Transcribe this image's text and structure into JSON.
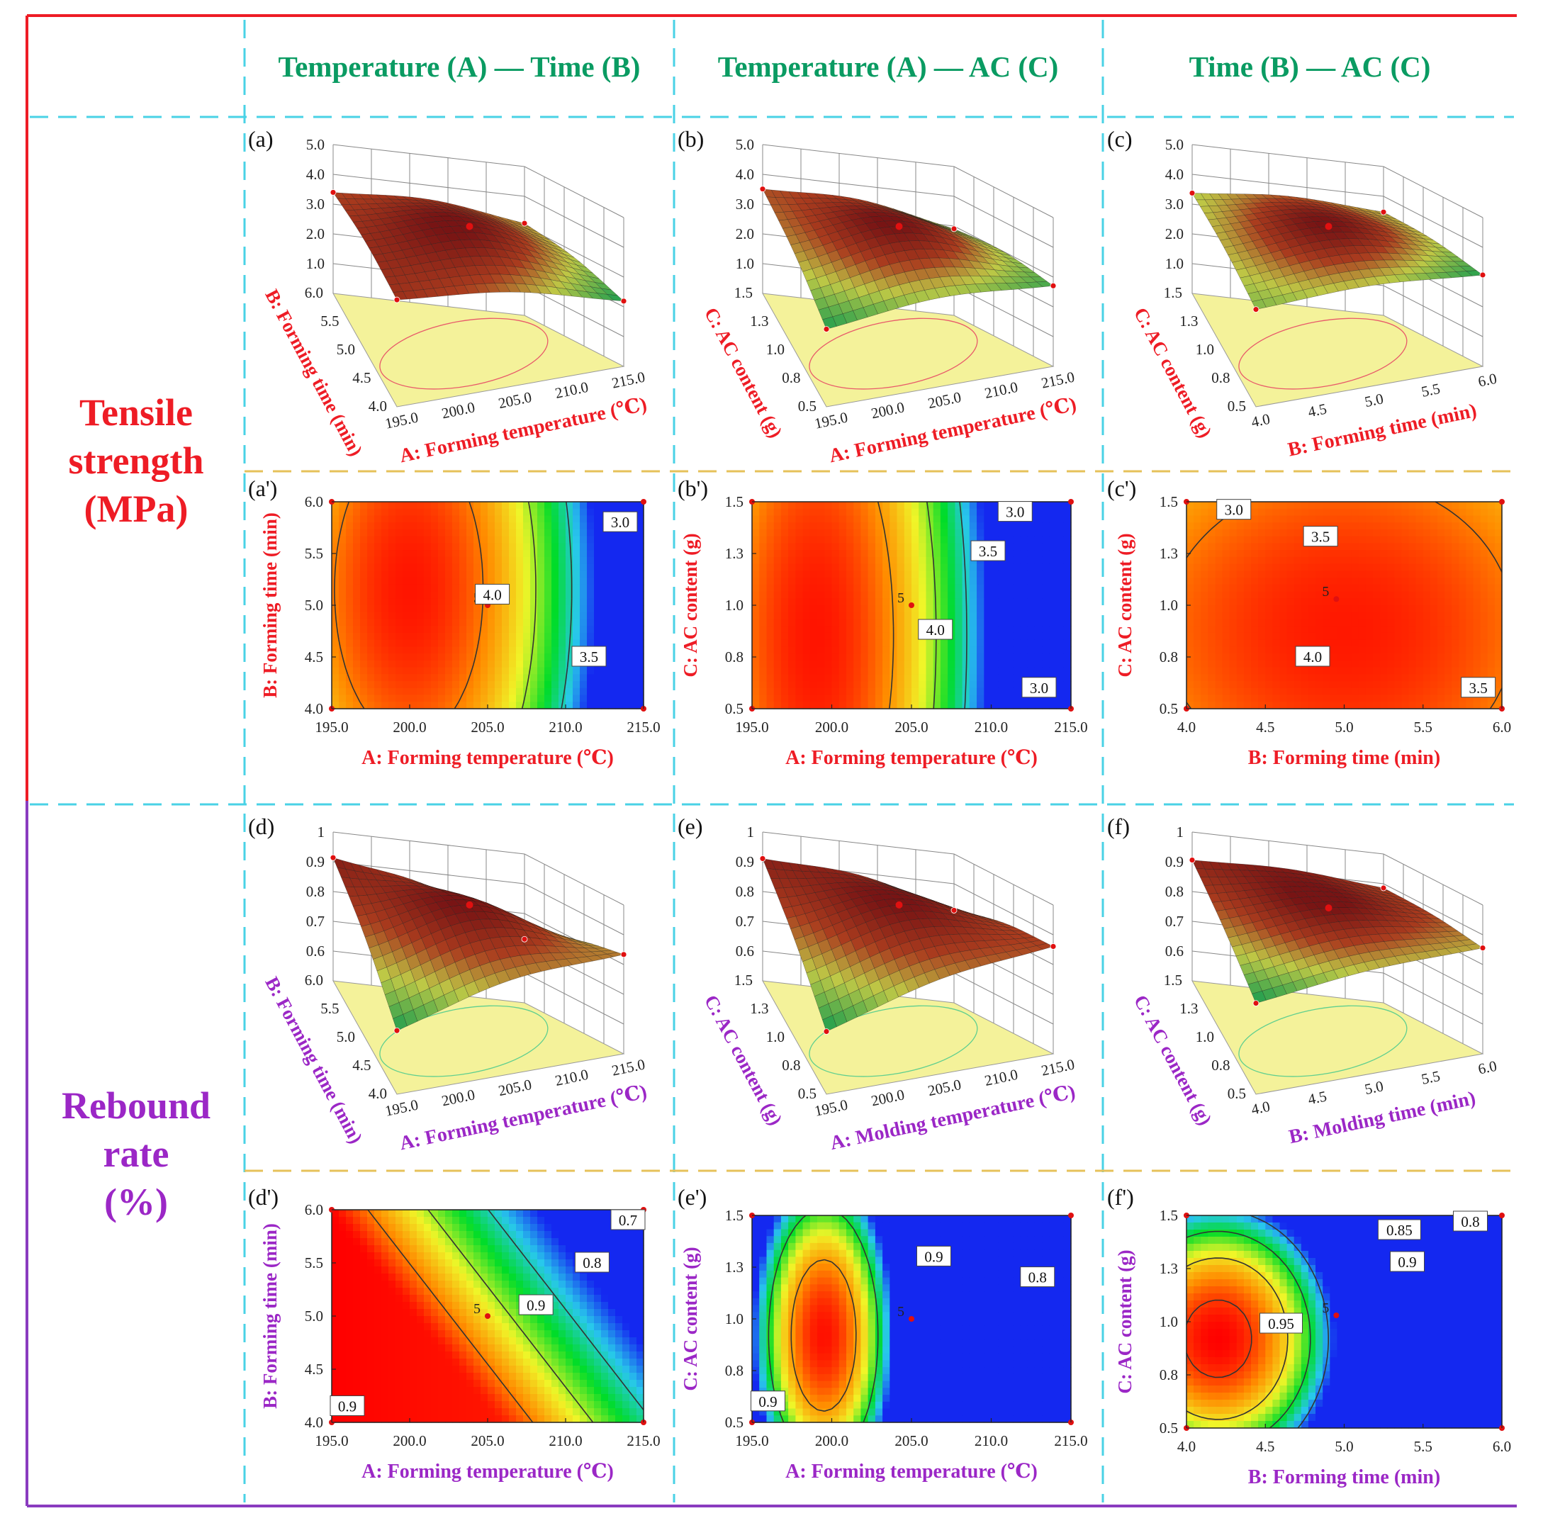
{
  "columns": [
    {
      "label": "Temperature (A) — Time (B)"
    },
    {
      "label": "Temperature (A) — AC (C)"
    },
    {
      "label": "Time (B) — AC (C)"
    }
  ],
  "rows": [
    {
      "lines": [
        "Tensile",
        "strength",
        "(MPa)"
      ],
      "color": "#ee1c25"
    },
    {
      "lines": [
        "Rebound",
        "rate",
        "(%)"
      ],
      "color": "#9b27c6"
    }
  ],
  "colors": {
    "red_border": "#ee1c25",
    "purple_border": "#8a3bbf",
    "cyan_dash": "#49d2e6",
    "yellow_dash": "#e6c15a",
    "green_title": "#0a9b62",
    "floor": "#f4f29a"
  },
  "chart_data": [
    {
      "id": "a",
      "type": "surface3d",
      "panel_label": "(a)",
      "response": "Tensile strength (MPa)",
      "xlabel": "A: Forming temperature (℃)",
      "ylabel": "B: Forming time (min)",
      "xticks": [
        "195.0",
        "200.0",
        "205.0",
        "210.0",
        "215.0"
      ],
      "yticks": [
        "4.0",
        "4.5",
        "5.0",
        "5.5",
        "6.0"
      ],
      "zticks": [
        "1.0",
        "2.0",
        "3.0",
        "4.0",
        "5.0"
      ],
      "xlim": [
        195,
        215
      ],
      "ylim": [
        4,
        6
      ],
      "zlim": [
        0,
        5
      ],
      "peak": [
        205,
        5.0
      ],
      "peak_value": 4.0,
      "corner_values": [
        3.3,
        3.0,
        2.1,
        3.5
      ],
      "label_color": "#ee1c25"
    },
    {
      "id": "b",
      "type": "surface3d",
      "panel_label": "(b)",
      "response": "Tensile strength (MPa)",
      "xlabel": "A: Forming temperature (℃)",
      "ylabel": "C: AC content (g)",
      "xticks": [
        "195.0",
        "200.0",
        "205.0",
        "210.0",
        "215.0"
      ],
      "yticks": [
        "0.5",
        "0.8",
        "1.0",
        "1.3",
        "1.5"
      ],
      "zticks": [
        "1.0",
        "2.0",
        "3.0",
        "4.0",
        "5.0"
      ],
      "xlim": [
        195,
        215
      ],
      "ylim": [
        0.5,
        1.5
      ],
      "zlim": [
        0,
        5
      ],
      "peak": [
        205,
        1.0
      ],
      "peak_value": 4.0,
      "corner_values": [
        3.4,
        2.8,
        2.6,
        2.5
      ],
      "label_color": "#ee1c25"
    },
    {
      "id": "c",
      "type": "surface3d",
      "panel_label": "(c)",
      "response": "Tensile strength (MPa)",
      "xlabel": "B: Forming time (min)",
      "ylabel": "C: AC content (g)",
      "xticks": [
        "4.0",
        "4.5",
        "5.0",
        "5.5",
        "6.0"
      ],
      "yticks": [
        "0.5",
        "0.8",
        "1.0",
        "1.3",
        "1.5"
      ],
      "zticks": [
        "1.0",
        "2.0",
        "3.0",
        "4.0",
        "5.0"
      ],
      "xlim": [
        4,
        6
      ],
      "ylim": [
        0.5,
        1.5
      ],
      "zlim": [
        0,
        5
      ],
      "peak": [
        5.0,
        1.0
      ],
      "peak_value": 4.0,
      "corner_values": [
        3.3,
        3.4,
        3.0,
        3.2
      ],
      "label_color": "#ee1c25"
    },
    {
      "id": "a2",
      "type": "contour",
      "panel_label": "(a')",
      "response": "Tensile strength (MPa)",
      "xlabel": "A: Forming temperature (℃)",
      "ylabel": "B: Forming time (min)",
      "xticks": [
        "195.0",
        "200.0",
        "205.0",
        "210.0",
        "215.0"
      ],
      "yticks": [
        "4.0",
        "4.5",
        "5.0",
        "5.5",
        "6.0"
      ],
      "xlim": [
        195,
        215
      ],
      "ylim": [
        4,
        6
      ],
      "model": {
        "a": [
          200,
          5.15,
          8.8,
          0.95,
          4.25
        ],
        "b": [
          0,
          0,
          0,
          0
        ]
      },
      "vrange": [
        2.6,
        4.3
      ],
      "levels": [
        3.0,
        3.5,
        4.0
      ],
      "contour_labels": [
        {
          "text": "3.0",
          "x": 213.5,
          "y": 5.8
        },
        {
          "text": "3.5",
          "x": 211.5,
          "y": 4.5
        },
        {
          "text": "4.0",
          "x": 205.3,
          "y": 5.1
        }
      ],
      "center": {
        "text": "5",
        "x": 205,
        "y": 5.0
      },
      "label_color": "#ee1c25"
    },
    {
      "id": "b2",
      "type": "contour",
      "panel_label": "(b')",
      "response": "Tensile strength (MPa)",
      "xlabel": "A: Forming temperature (℃)",
      "ylabel": "C: AC content (g)",
      "xticks": [
        "195.0",
        "200.0",
        "205.0",
        "210.0",
        "215.0"
      ],
      "yticks": [
        "0.5",
        "0.8",
        "1.0",
        "1.3",
        "1.5"
      ],
      "xlim": [
        195,
        215
      ],
      "ylim": [
        0.5,
        1.5
      ],
      "model": {
        "a": [
          199,
          0.85,
          11.5,
          0.6,
          4.35
        ],
        "b": [
          0,
          0,
          0,
          0
        ]
      },
      "vrange": [
        2.6,
        4.4
      ],
      "levels": [
        3.0,
        3.5,
        4.0
      ],
      "contour_labels": [
        {
          "text": "3.0",
          "x": 211.5,
          "y": 1.45
        },
        {
          "text": "3.5",
          "x": 209.8,
          "y": 1.26
        },
        {
          "text": "4.0",
          "x": 206.5,
          "y": 0.88
        },
        {
          "text": "3.0",
          "x": 213.0,
          "y": 0.6
        }
      ],
      "center": {
        "text": "5",
        "x": 205,
        "y": 1.0
      },
      "label_color": "#ee1c25"
    },
    {
      "id": "c2",
      "type": "contour",
      "panel_label": "(c')",
      "response": "Tensile strength (MPa)",
      "xlabel": "B: Forming time (min)",
      "ylabel": "C: AC content (g)",
      "xticks": [
        "4.0",
        "4.5",
        "5.0",
        "5.5",
        "6.0"
      ],
      "yticks": [
        "0.5",
        "0.8",
        "1.0",
        "1.3",
        "1.5"
      ],
      "xlim": [
        4,
        6
      ],
      "ylim": [
        0.5,
        1.5
      ],
      "model": {
        "a": [
          5.0,
          0.88,
          1.3,
          0.75,
          4.2
        ],
        "b": [
          0,
          0,
          0,
          0
        ]
      },
      "vrange": [
        2.8,
        4.25
      ],
      "levels": [
        3.0,
        3.5,
        4.0
      ],
      "contour_labels": [
        {
          "text": "3.0",
          "x": 4.3,
          "y": 1.46
        },
        {
          "text": "3.5",
          "x": 4.85,
          "y": 1.33
        },
        {
          "text": "4.0",
          "x": 4.8,
          "y": 0.75
        },
        {
          "text": "3.5",
          "x": 5.85,
          "y": 0.6
        }
      ],
      "center": {
        "text": "5",
        "x": 4.95,
        "y": 1.03
      },
      "label_color": "#ee1c25"
    },
    {
      "id": "d",
      "type": "surface3d",
      "panel_label": "(d)",
      "response": "Rebound rate (%)",
      "xlabel": "A: Forming temperature (℃)",
      "ylabel": "B: Forming time (min)",
      "xticks": [
        "195.0",
        "200.0",
        "205.0",
        "210.0",
        "215.0"
      ],
      "yticks": [
        "4.0",
        "4.5",
        "5.0",
        "5.5",
        "6.0"
      ],
      "zticks": [
        "0.6",
        "0.7",
        "0.8",
        "0.9",
        "1"
      ],
      "xlim": [
        195,
        215
      ],
      "ylim": [
        4,
        6
      ],
      "zlim": [
        0.5,
        1.0
      ],
      "peak": [
        205,
        5.0
      ],
      "peak_value": 0.93,
      "corner_values": [
        0.9,
        0.7,
        0.82,
        0.7
      ],
      "label_color": "#9b27c6"
    },
    {
      "id": "e",
      "type": "surface3d",
      "panel_label": "(e)",
      "response": "Rebound rate (%)",
      "xlabel": "A: Molding temperature (℃)",
      "ylabel": "C: AC content (g)",
      "xticks": [
        "195.0",
        "200.0",
        "205.0",
        "210.0",
        "215.0"
      ],
      "yticks": [
        "0.5",
        "0.8",
        "1.0",
        "1.3",
        "1.5"
      ],
      "zticks": [
        "0.6",
        "0.7",
        "0.8",
        "0.9",
        "1"
      ],
      "xlim": [
        195,
        215
      ],
      "ylim": [
        0.5,
        1.5
      ],
      "zlim": [
        0.5,
        1.0
      ],
      "peak": [
        205,
        1.0
      ],
      "peak_value": 0.93,
      "corner_values": [
        0.9,
        0.8,
        0.85,
        0.7
      ],
      "label_color": "#9b27c6"
    },
    {
      "id": "f",
      "type": "surface3d",
      "panel_label": "(f)",
      "response": "Rebound rate (%)",
      "xlabel": "B: Molding time (min)",
      "ylabel": "C: AC content (g)",
      "xticks": [
        "4.0",
        "4.5",
        "5.0",
        "5.5",
        "6.0"
      ],
      "yticks": [
        "0.5",
        "0.8",
        "1.0",
        "1.3",
        "1.5"
      ],
      "zticks": [
        "0.6",
        "0.7",
        "0.8",
        "0.9",
        "1"
      ],
      "xlim": [
        4,
        6
      ],
      "ylim": [
        0.5,
        1.5
      ],
      "zlim": [
        0.5,
        1.0
      ],
      "peak": [
        5.0,
        1.0
      ],
      "peak_value": 0.92,
      "corner_values": [
        0.9,
        0.88,
        0.85,
        0.8
      ],
      "label_color": "#9b27c6"
    },
    {
      "id": "d2",
      "type": "contour",
      "panel_label": "(d')",
      "response": "Rebound rate (%)",
      "xlabel": "A: Forming temperature (℃)",
      "ylabel": "B: Forming time (min)",
      "xticks": [
        "195.0",
        "200.0",
        "205.0",
        "210.0",
        "215.0"
      ],
      "yticks": [
        "4.0",
        "4.5",
        "5.0",
        "5.5",
        "6.0"
      ],
      "xlim": [
        195,
        215
      ],
      "ylim": [
        4,
        6
      ],
      "model": {
        "a": [
          205,
          5.0,
          1,
          1,
          0
        ],
        "b": [
          0.9,
          0.011,
          0.06,
          0
        ]
      },
      "vrange": [
        0.62,
        0.96
      ],
      "levels": [
        0.7,
        0.8,
        0.9
      ],
      "contour_labels": [
        {
          "text": "0.7",
          "x": 214.0,
          "y": 5.9
        },
        {
          "text": "0.8",
          "x": 211.7,
          "y": 5.5
        },
        {
          "text": "0.9",
          "x": 208.1,
          "y": 5.1
        },
        {
          "text": "0.9",
          "x": 196.0,
          "y": 4.15
        }
      ],
      "center": {
        "text": "5",
        "x": 205,
        "y": 5.0
      },
      "label_color": "#9b27c6"
    },
    {
      "id": "e2",
      "type": "contour",
      "panel_label": "(e')",
      "response": "Rebound rate (%)",
      "xlabel": "A: Forming temperature (℃)",
      "ylabel": "C: AC content (g)",
      "xticks": [
        "195.0",
        "200.0",
        "205.0",
        "210.0",
        "215.0"
      ],
      "yticks": [
        "0.5",
        "0.8",
        "1.0",
        "1.3",
        "1.5"
      ],
      "xlim": [
        195,
        215
      ],
      "ylim": [
        0.5,
        1.5
      ],
      "model": {
        "a": [
          199.5,
          0.92,
          10.5,
          0.82,
          0.955
        ],
        "b": [
          0,
          0,
          0,
          0
        ]
      },
      "vrange": [
        0.7,
        0.96
      ],
      "levels": [
        0.8,
        0.9
      ],
      "contour_labels": [
        {
          "text": "0.9",
          "x": 206.4,
          "y": 1.3
        },
        {
          "text": "0.8",
          "x": 212.9,
          "y": 1.2
        },
        {
          "text": "0.9",
          "x": 196.0,
          "y": 0.6
        }
      ],
      "center": {
        "text": "5",
        "x": 205,
        "y": 1.0
      },
      "label_color": "#9b27c6"
    },
    {
      "id": "f2",
      "type": "contour",
      "panel_label": "(f')",
      "response": "Rebound rate (%)",
      "xlabel": "B: Forming time (min)",
      "ylabel": "C: AC content (g)",
      "xticks": [
        "4.0",
        "4.5",
        "5.0",
        "5.5",
        "6.0"
      ],
      "yticks": [
        "0.5",
        "0.8",
        "1.0",
        "1.3",
        "1.5"
      ],
      "xlim": [
        4,
        6
      ],
      "ylim": [
        0.5,
        1.5
      ],
      "model": {
        "a": [
          4.2,
          0.92,
          2.6,
          0.9,
          0.965
        ],
        "b": [
          0,
          0,
          0,
          0
        ]
      },
      "vrange": [
        0.78,
        0.965
      ],
      "levels": [
        0.8,
        0.85,
        0.9,
        0.95
      ],
      "contour_labels": [
        {
          "text": "0.85",
          "x": 5.35,
          "y": 1.43
        },
        {
          "text": "0.8",
          "x": 5.8,
          "y": 1.47
        },
        {
          "text": "0.9",
          "x": 5.4,
          "y": 1.28
        },
        {
          "text": "0.95",
          "x": 4.6,
          "y": 0.99
        }
      ],
      "center": {
        "text": "5",
        "x": 4.95,
        "y": 1.03
      },
      "label_color": "#9b27c6"
    }
  ]
}
